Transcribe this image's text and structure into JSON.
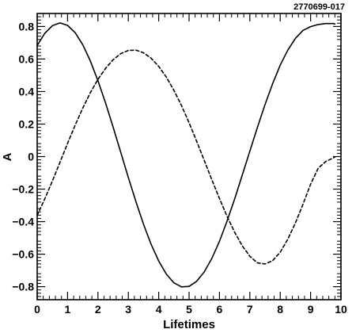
{
  "figure_id": "2770699-017",
  "chart_data": {
    "type": "line",
    "title": "",
    "xlabel": "Lifetimes",
    "ylabel": "A",
    "xlim": [
      0,
      10
    ],
    "ylim": [
      -0.88,
      0.88
    ],
    "x_ticks": [
      0,
      1,
      2,
      3,
      4,
      5,
      6,
      7,
      8,
      9,
      10
    ],
    "y_ticks": [
      -0.8,
      -0.6,
      -0.4,
      -0.2,
      0,
      0.2,
      0.4,
      0.6,
      0.8
    ],
    "x_tick_labels": [
      "0",
      "1",
      "2",
      "3",
      "4",
      "5",
      "6",
      "7",
      "8",
      "9",
      "10"
    ],
    "y_tick_labels": [
      "−0.8",
      "−0.6",
      "−0.4",
      "−0.2",
      "0",
      "0.2",
      "0.4",
      "0.6",
      "0.8"
    ],
    "grid": false,
    "legend": "none",
    "series": [
      {
        "style": "solid",
        "color": "#000000",
        "x": [
          0,
          0.25,
          0.5,
          0.75,
          1,
          1.25,
          1.5,
          1.75,
          2,
          2.25,
          2.5,
          2.75,
          3,
          3.25,
          3.5,
          3.75,
          4,
          4.25,
          4.5,
          4.75,
          5,
          5.25,
          5.5,
          5.75,
          6,
          6.25,
          6.5,
          6.75,
          7,
          7.25,
          7.5,
          7.75,
          8,
          8.25,
          8.5,
          8.75,
          9,
          9.25,
          9.5,
          9.75,
          9.8
        ],
        "y": [
          0.683,
          0.758,
          0.805,
          0.822,
          0.807,
          0.762,
          0.688,
          0.588,
          0.467,
          0.33,
          0.181,
          0.027,
          -0.128,
          -0.277,
          -0.416,
          -0.539,
          -0.642,
          -0.722,
          -0.776,
          -0.801,
          -0.798,
          -0.767,
          -0.709,
          -0.626,
          -0.521,
          -0.397,
          -0.261,
          -0.114,
          0.033,
          0.18,
          0.32,
          0.448,
          0.562,
          0.655,
          0.727,
          0.776,
          0.799,
          0.812,
          0.818,
          0.818,
          0.815
        ]
      },
      {
        "style": "dashed",
        "color": "#000000",
        "x": [
          0,
          0.25,
          0.5,
          0.75,
          1,
          1.25,
          1.5,
          1.75,
          2,
          2.25,
          2.5,
          2.75,
          3,
          3.25,
          3.5,
          3.75,
          4,
          4.25,
          4.5,
          4.75,
          5,
          5.25,
          5.5,
          5.75,
          6,
          6.25,
          6.5,
          6.75,
          7,
          7.25,
          7.5,
          7.75,
          8,
          8.25,
          8.5,
          8.75,
          9,
          9.25,
          9.5,
          9.75,
          9.8
        ],
        "y": [
          -0.362,
          -0.26,
          -0.15,
          -0.035,
          0.081,
          0.193,
          0.298,
          0.393,
          0.475,
          0.542,
          0.596,
          0.633,
          0.653,
          0.655,
          0.638,
          0.605,
          0.555,
          0.489,
          0.408,
          0.314,
          0.208,
          0.094,
          -0.024,
          -0.143,
          -0.258,
          -0.367,
          -0.465,
          -0.548,
          -0.613,
          -0.654,
          -0.66,
          -0.64,
          -0.588,
          -0.508,
          -0.408,
          -0.293,
          -0.17,
          -0.071,
          -0.03,
          -0.008,
          -0.002
        ]
      }
    ]
  }
}
